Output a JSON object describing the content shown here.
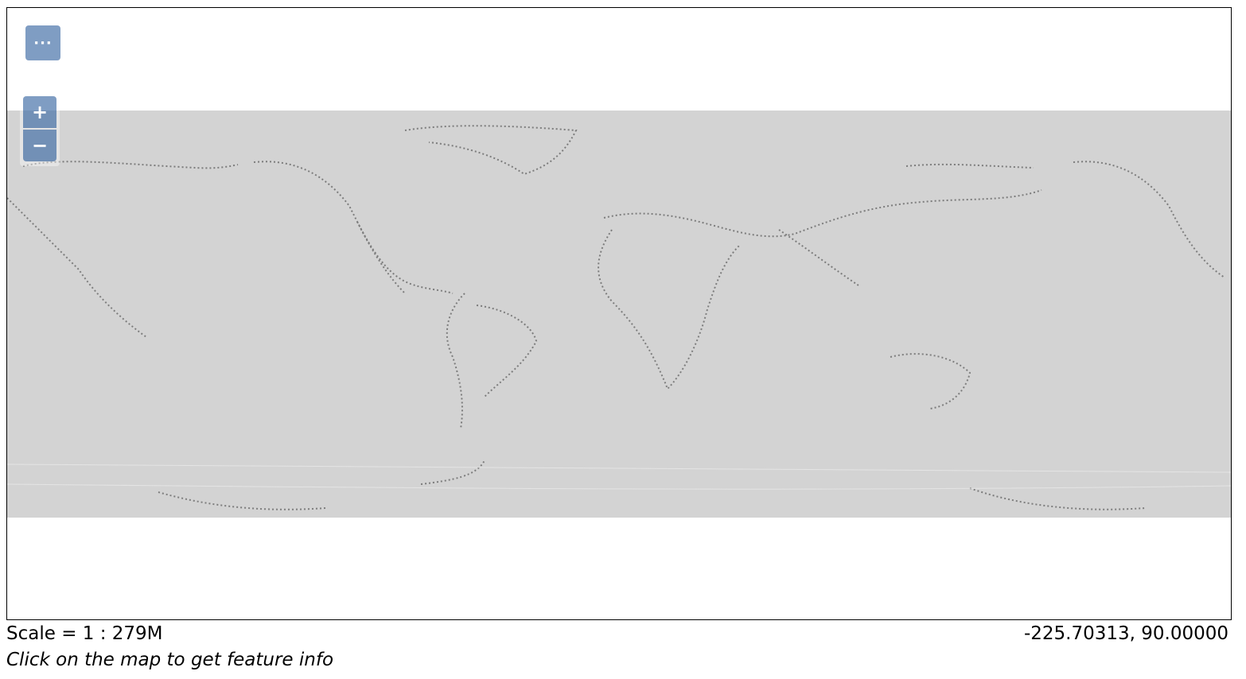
{
  "map": {
    "background_color": "#d3d3d3",
    "land_edge_color": "#5a5a5a"
  },
  "controls": {
    "layer_switcher_icon": "ellipsis-icon",
    "layer_switcher_glyph": "···",
    "zoom_in_icon": "plus-icon",
    "zoom_in_glyph": "+",
    "zoom_out_icon": "minus-icon",
    "zoom_out_glyph": "−",
    "button_color": "#7b97c2"
  },
  "status": {
    "scale_text": "Scale = 1 : 279M",
    "coordinates": "-225.70313, 90.00000",
    "info_hint": "Click on the map to get feature info"
  }
}
